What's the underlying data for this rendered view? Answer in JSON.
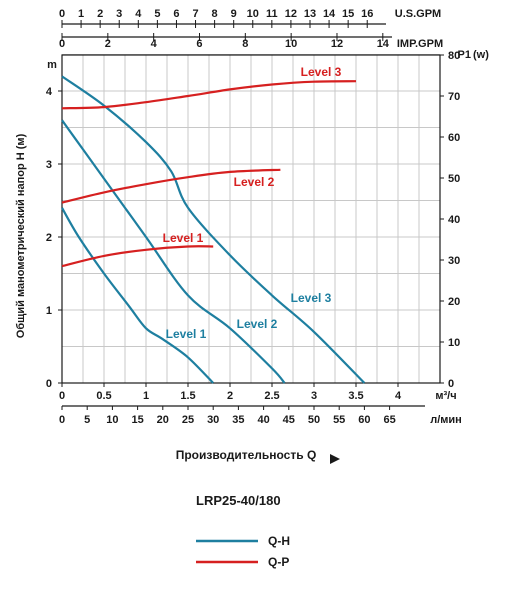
{
  "chart_data": {
    "type": "line",
    "model": "LRP25-40/180",
    "ylabel": "Общий манометрический напор Н (м)",
    "ylabel_unit": "m",
    "y2label": "P1",
    "y2label_unit": "(w)",
    "xlabel": "Производительность Q",
    "x_axes": {
      "us_gpm": {
        "label": "U.S.GPM",
        "ticks": [
          "0",
          "1",
          "2",
          "3",
          "4",
          "5",
          "6",
          "7",
          "8",
          "9",
          "10",
          "11",
          "12",
          "13",
          "14",
          "15",
          "16"
        ]
      },
      "imp_gpm": {
        "label": "IMP.GPM",
        "ticks": [
          "0",
          "2",
          "4",
          "6",
          "8",
          "10",
          "12",
          "14"
        ]
      },
      "m3h": {
        "label": "м³/ч",
        "ticks": [
          "0",
          "0.5",
          "1",
          "1.5",
          "2",
          "2.5",
          "3",
          "3.5",
          "4"
        ]
      },
      "lmin": {
        "label": "л/мин",
        "ticks": [
          "0",
          "5",
          "10",
          "15",
          "20",
          "25",
          "30",
          "35",
          "40",
          "45",
          "50",
          "55",
          "60",
          "65"
        ]
      }
    },
    "y_ticks": [
      "0",
      "1",
      "2",
      "3",
      "4"
    ],
    "y2_ticks": [
      "0",
      "10",
      "20",
      "30",
      "40",
      "50",
      "60",
      "70",
      "80"
    ],
    "xlim": [
      0,
      4.5
    ],
    "ylim": [
      0,
      4.5
    ],
    "y2lim": [
      0,
      80
    ],
    "grid": true,
    "series_qh": [
      {
        "name": "Level 1",
        "x": [
          0,
          0.2,
          0.5,
          0.8,
          1.0,
          1.2,
          1.5,
          1.8
        ],
        "y": [
          2.4,
          2.0,
          1.5,
          1.05,
          0.75,
          0.6,
          0.35,
          0.0
        ]
      },
      {
        "name": "Level 2",
        "x": [
          0,
          0.25,
          0.5,
          1.0,
          1.5,
          2.0,
          2.5,
          2.65
        ],
        "y": [
          3.6,
          3.2,
          2.8,
          2.0,
          1.2,
          0.75,
          0.2,
          0.0
        ]
      },
      {
        "name": "Level 3",
        "x": [
          0,
          0.5,
          1.0,
          1.3,
          1.5,
          2.0,
          2.5,
          3.0,
          3.6
        ],
        "y": [
          4.2,
          3.8,
          3.3,
          2.9,
          2.4,
          1.75,
          1.2,
          0.7,
          0.0
        ]
      }
    ],
    "series_qp": [
      {
        "name": "Level 1",
        "x": [
          0,
          0.5,
          1.0,
          1.5,
          1.8
        ],
        "y": [
          28.5,
          31,
          32.5,
          33.3,
          33.3
        ]
      },
      {
        "name": "Level 2",
        "x": [
          0,
          0.5,
          1.0,
          1.5,
          2.0,
          2.6
        ],
        "y": [
          44,
          46.5,
          48.5,
          50.2,
          51.5,
          52
        ]
      },
      {
        "name": "Level 3",
        "x": [
          0,
          0.5,
          1.0,
          1.5,
          2.0,
          2.5,
          3.0,
          3.5
        ],
        "y": [
          67,
          67.3,
          68.5,
          70,
          71.6,
          72.8,
          73.5,
          73.6
        ]
      }
    ],
    "legend": [
      {
        "label": "Q-H",
        "color": "#1e7fa0"
      },
      {
        "label": "Q-P",
        "color": "#d62020"
      }
    ],
    "colors": {
      "qh": "#1e7fa0",
      "qp": "#d62020",
      "grid": "#c8c8c8",
      "axis": "#1a1a1a"
    }
  }
}
